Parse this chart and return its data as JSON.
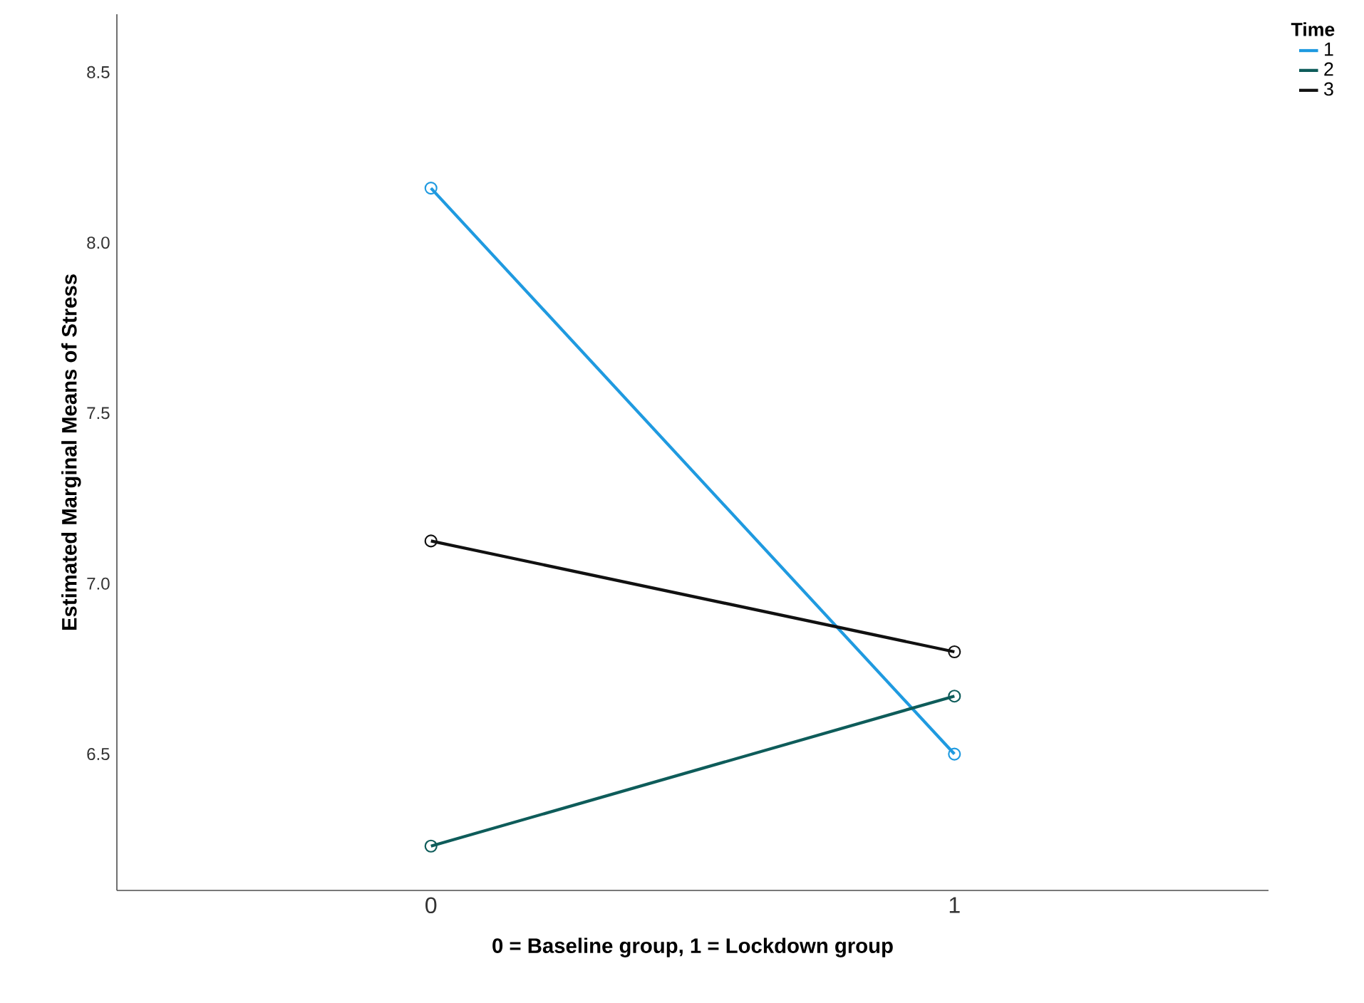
{
  "chart_data": {
    "type": "line",
    "xlabel": "0 = Baseline group, 1 = Lockdown group",
    "ylabel": "Estimated Marginal Means of Stress",
    "legend_title": "Time",
    "x": [
      0,
      1
    ],
    "xlim": [
      -0.6,
      1.6
    ],
    "xticks": [
      0,
      1
    ],
    "ylim": [
      6.1,
      8.67
    ],
    "yticks": [
      6.5,
      {
        "value": 7,
        "label": "7.0"
      },
      7.5,
      {
        "value": 8,
        "label": "8.0"
      },
      8.5
    ],
    "series": [
      {
        "name": "1",
        "color": "#1f9ae0",
        "values": [
          8.16,
          6.5
        ]
      },
      {
        "name": "2",
        "color": "#0e5c5a",
        "values": [
          6.23,
          6.67
        ]
      },
      {
        "name": "3",
        "color": "#111111",
        "values": [
          7.125,
          6.8
        ]
      }
    ],
    "marker": "circle",
    "line_style": "solid",
    "legend": "top right",
    "grid": false
  }
}
